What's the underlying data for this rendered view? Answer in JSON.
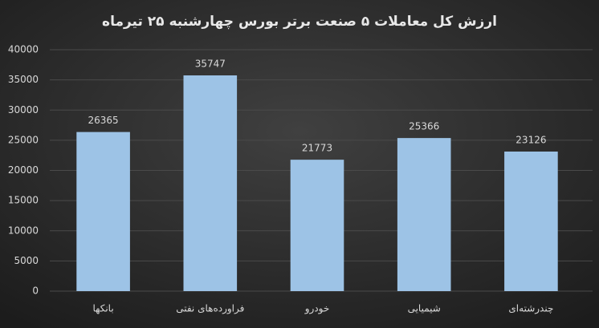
{
  "chart_data": {
    "type": "bar",
    "title": "ارزش کل معاملات ۵ صنعت برتر بورس چهارشنبه ۲۵ تیرماه",
    "categories": [
      "بانکها",
      "فراورده‌های نفتی",
      "خودرو",
      "شیمیایی",
      "چندرشته‌ای"
    ],
    "values": [
      26365,
      35747,
      21773,
      25366,
      23126
    ],
    "color": "#9dc3e6",
    "ylim": [
      0,
      40000
    ],
    "yticks": [
      0,
      5000,
      10000,
      15000,
      20000,
      25000,
      30000,
      35000,
      40000
    ],
    "grid": true
  }
}
